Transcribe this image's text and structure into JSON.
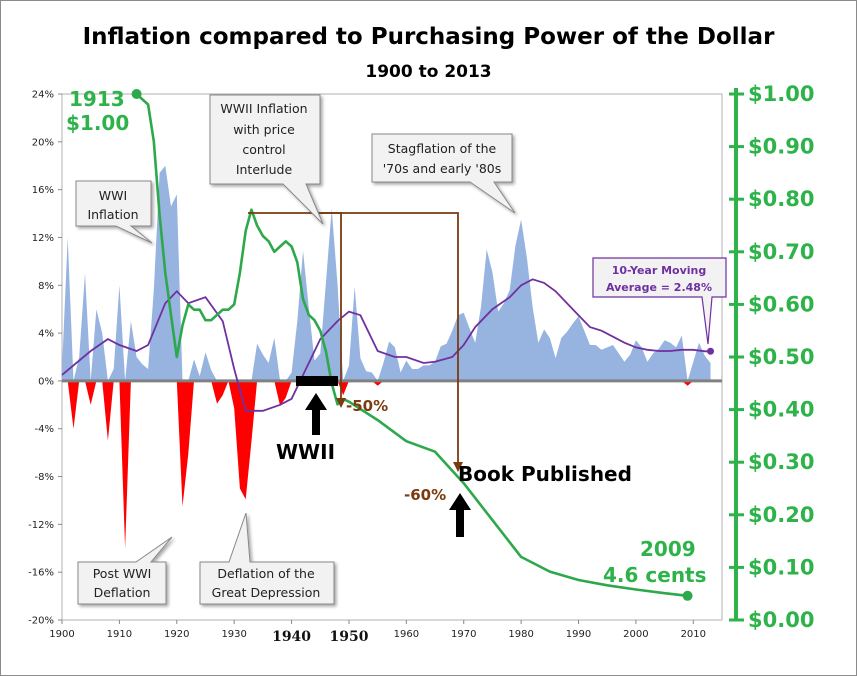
{
  "chart_data": {
    "type": "area",
    "title": "Inflation compared to Purchasing Power of the Dollar",
    "subtitle": "1900 to 2013",
    "x_ticks": [
      1900,
      1910,
      1920,
      1930,
      1940,
      1950,
      1960,
      1970,
      1980,
      1990,
      2000,
      2010
    ],
    "x_tick_labels": [
      "1900",
      "1910",
      "1920",
      "1930",
      "1940",
      "1950",
      "1960",
      "1970",
      "1980",
      "1990",
      "2000",
      "2010"
    ],
    "xlim": [
      1900,
      2015
    ],
    "left_axis": {
      "ylim": [
        -20,
        24
      ],
      "unit": "%",
      "tick_labels": [
        "24%",
        "20%",
        "16%",
        "12%",
        "8%",
        "4%",
        "0%",
        "-4%",
        "-8%",
        "-12%",
        "-16%",
        "-20%"
      ],
      "tick_values": [
        24,
        20,
        16,
        12,
        8,
        4,
        0,
        -4,
        -8,
        -12,
        -16,
        -20
      ]
    },
    "right_axis": {
      "ylim": [
        0,
        1
      ],
      "tick_labels": [
        "$1.00",
        "$0.90",
        "$0.80",
        "$0.70",
        "$0.60",
        "$0.50",
        "$0.40",
        "$0.30",
        "$0.20",
        "$0.10",
        "$0.00"
      ],
      "tick_values": [
        1.0,
        0.9,
        0.8,
        0.7,
        0.6,
        0.5,
        0.4,
        0.3,
        0.2,
        0.1,
        0.0
      ]
    },
    "series": [
      {
        "name": "inflation",
        "axis": "left",
        "color_pos": "#97b3e0",
        "color_neg": "#ff0000",
        "x": [
          1900,
          1901,
          1902,
          1903,
          1904,
          1905,
          1906,
          1907,
          1908,
          1909,
          1910,
          1911,
          1912,
          1913,
          1914,
          1915,
          1916,
          1917,
          1918,
          1919,
          1920,
          1921,
          1922,
          1923,
          1924,
          1925,
          1926,
          1927,
          1928,
          1929,
          1930,
          1931,
          1932,
          1933,
          1934,
          1935,
          1936,
          1937,
          1938,
          1939,
          1940,
          1941,
          1942,
          1943,
          1944,
          1945,
          1946,
          1947,
          1948,
          1949,
          1950,
          1951,
          1952,
          1953,
          1954,
          1955,
          1956,
          1957,
          1958,
          1959,
          1960,
          1961,
          1962,
          1963,
          1964,
          1965,
          1966,
          1967,
          1968,
          1969,
          1970,
          1971,
          1972,
          1973,
          1974,
          1975,
          1976,
          1977,
          1978,
          1979,
          1980,
          1981,
          1982,
          1983,
          1984,
          1985,
          1986,
          1987,
          1988,
          1989,
          1990,
          1991,
          1992,
          1993,
          1994,
          1995,
          1996,
          1997,
          1998,
          1999,
          2000,
          2001,
          2002,
          2003,
          2004,
          2005,
          2006,
          2007,
          2008,
          2009,
          2010,
          2011,
          2012,
          2013
        ],
        "y": [
          1.0,
          12.0,
          -4.0,
          2.0,
          9.0,
          -2.0,
          6.0,
          4.0,
          -5.0,
          1.0,
          8.0,
          -14.0,
          5.0,
          2.0,
          1.4,
          1.0,
          7.6,
          17.4,
          18.0,
          14.6,
          15.6,
          -10.5,
          -6.1,
          1.8,
          0.4,
          2.4,
          0.9,
          -1.9,
          -1.2,
          0.0,
          -2.3,
          -9.0,
          -9.9,
          -5.1,
          3.1,
          2.2,
          1.5,
          3.6,
          -2.1,
          -1.4,
          0.7,
          5.0,
          10.9,
          6.1,
          1.7,
          2.3,
          8.3,
          14.4,
          8.1,
          -1.2,
          1.3,
          7.9,
          1.9,
          0.8,
          0.7,
          -0.4,
          1.5,
          3.3,
          2.8,
          0.7,
          1.7,
          1.0,
          1.0,
          1.3,
          1.3,
          1.6,
          2.9,
          3.1,
          4.2,
          5.5,
          5.7,
          4.4,
          3.2,
          6.2,
          11.0,
          9.1,
          5.8,
          6.5,
          7.6,
          11.3,
          13.5,
          10.3,
          6.2,
          3.2,
          4.3,
          3.6,
          1.9,
          3.6,
          4.1,
          4.8,
          5.4,
          4.2,
          3.0,
          3.0,
          2.6,
          2.8,
          3.0,
          2.3,
          1.6,
          2.2,
          3.4,
          2.8,
          1.6,
          2.3,
          2.7,
          3.4,
          3.2,
          2.8,
          3.8,
          -0.4,
          1.6,
          3.2,
          2.1,
          1.5
        ]
      },
      {
        "name": "10-Year Moving Average",
        "axis": "left",
        "color": "#7030a0",
        "x": [
          1900,
          1905,
          1908,
          1910,
          1913,
          1915,
          1918,
          1920,
          1922,
          1925,
          1928,
          1930,
          1932,
          1935,
          1938,
          1940,
          1943,
          1945,
          1948,
          1950,
          1952,
          1955,
          1958,
          1960,
          1963,
          1965,
          1968,
          1970,
          1972,
          1975,
          1978,
          1980,
          1982,
          1984,
          1986,
          1988,
          1990,
          1992,
          1994,
          1996,
          1998,
          2000,
          2002,
          2004,
          2006,
          2008,
          2010,
          2012,
          2013
        ],
        "y": [
          0.5,
          2.5,
          3.5,
          3.0,
          2.5,
          3.0,
          6.5,
          7.5,
          6.5,
          7.0,
          5.0,
          1.0,
          -2.5,
          -2.5,
          -2.0,
          -1.5,
          1.5,
          3.5,
          5.0,
          5.8,
          5.5,
          2.5,
          2.0,
          2.0,
          1.5,
          1.6,
          2.0,
          3.0,
          4.5,
          6.0,
          7.0,
          8.0,
          8.5,
          8.2,
          7.5,
          6.5,
          5.5,
          4.5,
          4.2,
          3.7,
          3.2,
          2.8,
          2.6,
          2.5,
          2.5,
          2.6,
          2.6,
          2.48,
          2.48
        ]
      },
      {
        "name": "Purchasing Power of the Dollar",
        "axis": "right",
        "color": "#2da84a",
        "x": [
          1913,
          1914,
          1915,
          1916,
          1917,
          1918,
          1919,
          1920,
          1921,
          1922,
          1923,
          1924,
          1925,
          1926,
          1927,
          1928,
          1929,
          1930,
          1931,
          1932,
          1933,
          1934,
          1935,
          1936,
          1937,
          1938,
          1939,
          1940,
          1941,
          1942,
          1943,
          1944,
          1945,
          1946,
          1947,
          1948,
          1949,
          1950,
          1955,
          1960,
          1965,
          1970,
          1975,
          1980,
          1985,
          1990,
          1995,
          2000,
          2005,
          2009
        ],
        "y": [
          1.0,
          0.99,
          0.98,
          0.91,
          0.77,
          0.66,
          0.58,
          0.5,
          0.56,
          0.6,
          0.59,
          0.59,
          0.57,
          0.57,
          0.58,
          0.59,
          0.59,
          0.6,
          0.66,
          0.74,
          0.78,
          0.75,
          0.73,
          0.72,
          0.7,
          0.71,
          0.72,
          0.71,
          0.68,
          0.61,
          0.58,
          0.57,
          0.55,
          0.51,
          0.45,
          0.41,
          0.42,
          0.415,
          0.38,
          0.34,
          0.32,
          0.26,
          0.19,
          0.12,
          0.092,
          0.076,
          0.066,
          0.058,
          0.051,
          0.046
        ]
      }
    ]
  },
  "annotations": {
    "start_label_year": "1913",
    "start_label_value": "$1.00",
    "end_label_year": "2009",
    "end_label_value": "4.6 cents",
    "wwi_inflation": [
      "WWI",
      "Inflation"
    ],
    "wwii_inflation": [
      "WWII Inflation",
      "with price",
      "control",
      "Interlude"
    ],
    "stagflation": [
      "Stagflation of the",
      "'70s and early '80s"
    ],
    "post_wwi_deflation": [
      "Post WWI",
      "Deflation"
    ],
    "great_depression": [
      "Deflation of the",
      "Great Depression"
    ],
    "moving_average": [
      "10-Year Moving",
      "Average = 2.48%"
    ],
    "wwii_label": "WWII",
    "book_published": "Book Published",
    "minus_50": "-50%",
    "minus_60": "-60%",
    "bold_ticks": [
      "1940",
      "1950"
    ]
  },
  "colors": {
    "inflation_pos": "#97b3e0",
    "inflation_neg": "#ff0000",
    "dollar": "#2da84a",
    "moving_average": "#7030a0",
    "axis_right": "#2db34a",
    "annotation_brown": "#7a3b0f"
  }
}
